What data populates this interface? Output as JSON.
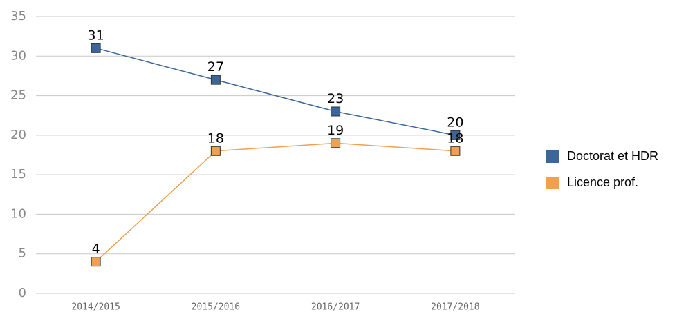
{
  "chart_data": {
    "type": "line",
    "categories": [
      "2014/2015",
      "2015/2016",
      "2016/2017",
      "2017/2018"
    ],
    "series": [
      {
        "name": "Doctorat et HDR",
        "color": "#3b6699",
        "values": [
          31,
          27,
          23,
          20
        ]
      },
      {
        "name": "Licence prof.",
        "color": "#f0a04f",
        "values": [
          4,
          18,
          19,
          18
        ]
      }
    ],
    "ylim": [
      0,
      35
    ],
    "yticks": [
      0,
      5,
      10,
      15,
      20,
      25,
      30,
      35
    ],
    "grid": true,
    "legend": "right"
  }
}
